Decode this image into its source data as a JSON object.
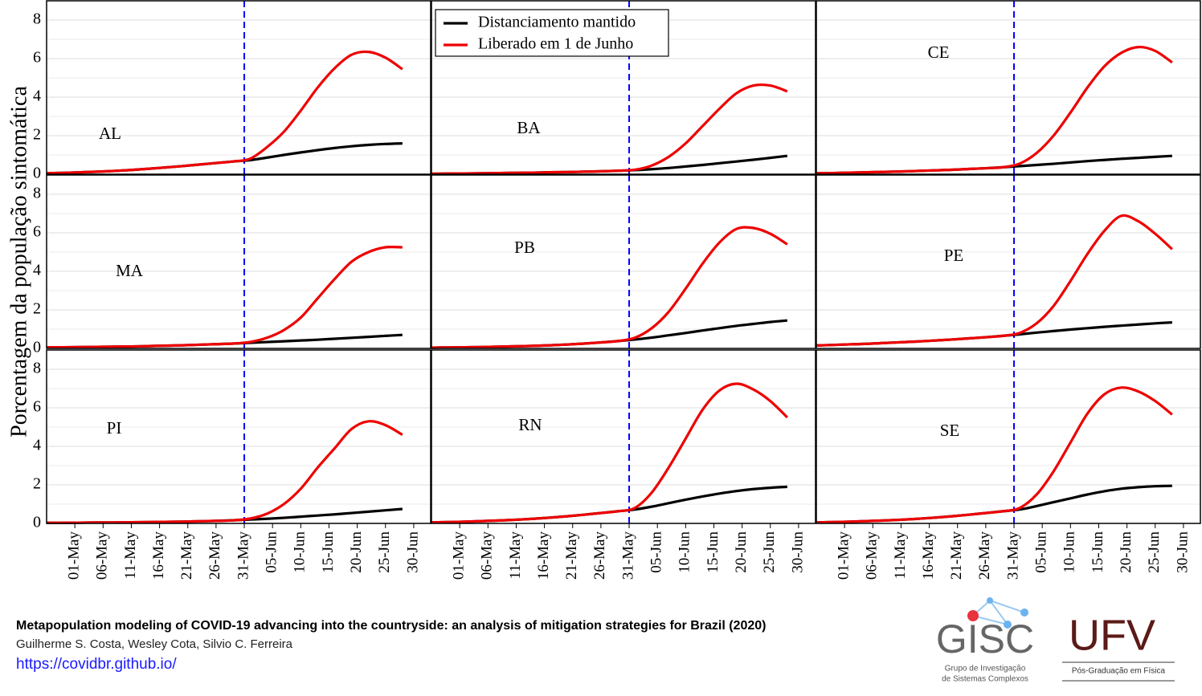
{
  "ylabel": "Porcentagem da população sintomática",
  "chart_data": [
    {
      "type": "line",
      "label": "AL",
      "xlim": [
        "26-Apr",
        "03-Jul"
      ],
      "ylim": [
        0,
        9
      ],
      "yticks": [
        0,
        2,
        4,
        6,
        8
      ],
      "minor_yticks": [
        1,
        3,
        5,
        7
      ],
      "grid": true,
      "vline": "31-May",
      "vline_color": "#0000ff",
      "x": [
        "26-Apr",
        "29-Apr",
        "02-May",
        "05-May",
        "08-May",
        "11-May",
        "14-May",
        "17-May",
        "20-May",
        "23-May",
        "26-May",
        "29-May",
        "01-Jun",
        "04-Jun",
        "07-Jun",
        "10-Jun",
        "13-Jun",
        "16-Jun",
        "19-Jun",
        "22-Jun",
        "25-Jun",
        "28-Jun"
      ],
      "series": [
        {
          "color": "#000000",
          "values": [
            0.05,
            0.07,
            0.1,
            0.13,
            0.17,
            0.22,
            0.28,
            0.35,
            0.42,
            0.5,
            0.58,
            0.66,
            0.73,
            0.86,
            1.0,
            1.13,
            1.25,
            1.36,
            1.45,
            1.52,
            1.57,
            1.6
          ]
        },
        {
          "color": "#ee0000",
          "values": [
            0.05,
            0.07,
            0.1,
            0.13,
            0.17,
            0.22,
            0.28,
            0.35,
            0.42,
            0.5,
            0.58,
            0.66,
            0.8,
            1.4,
            2.2,
            3.3,
            4.5,
            5.5,
            6.2,
            6.35,
            6.05,
            5.45
          ]
        }
      ]
    },
    {
      "type": "line",
      "label": "BA",
      "xlim": [
        "26-Apr",
        "03-Jul"
      ],
      "ylim": [
        0,
        9
      ],
      "yticks": [
        0,
        2,
        4,
        6,
        8
      ],
      "minor_yticks": [
        1,
        3,
        5,
        7
      ],
      "grid": true,
      "vline": "31-May",
      "vline_color": "#0000ff",
      "legend": "top-left",
      "x": [
        "26-Apr",
        "29-Apr",
        "02-May",
        "05-May",
        "08-May",
        "11-May",
        "14-May",
        "17-May",
        "20-May",
        "23-May",
        "26-May",
        "29-May",
        "01-Jun",
        "04-Jun",
        "07-Jun",
        "10-Jun",
        "13-Jun",
        "16-Jun",
        "19-Jun",
        "22-Jun",
        "25-Jun",
        "28-Jun"
      ],
      "series": [
        {
          "name": "Distanciamento mantido",
          "color": "#000000",
          "values": [
            0.02,
            0.03,
            0.04,
            0.05,
            0.06,
            0.07,
            0.08,
            0.1,
            0.11,
            0.13,
            0.15,
            0.18,
            0.21,
            0.26,
            0.32,
            0.4,
            0.48,
            0.57,
            0.66,
            0.75,
            0.85,
            0.95
          ]
        },
        {
          "name": "Liberado em 1 de Junho",
          "color": "#ee0000",
          "values": [
            0.02,
            0.03,
            0.04,
            0.05,
            0.06,
            0.07,
            0.08,
            0.1,
            0.11,
            0.13,
            0.15,
            0.18,
            0.23,
            0.45,
            0.9,
            1.6,
            2.5,
            3.4,
            4.2,
            4.6,
            4.6,
            4.3
          ]
        }
      ]
    },
    {
      "type": "line",
      "label": "CE",
      "xlim": [
        "26-Apr",
        "03-Jul"
      ],
      "ylim": [
        0,
        9
      ],
      "yticks": [
        0,
        2,
        4,
        6,
        8
      ],
      "minor_yticks": [
        1,
        3,
        5,
        7
      ],
      "grid": true,
      "vline": "31-May",
      "vline_color": "#0000ff",
      "x": [
        "26-Apr",
        "29-Apr",
        "02-May",
        "05-May",
        "08-May",
        "11-May",
        "14-May",
        "17-May",
        "20-May",
        "23-May",
        "26-May",
        "29-May",
        "01-Jun",
        "04-Jun",
        "07-Jun",
        "10-Jun",
        "13-Jun",
        "16-Jun",
        "19-Jun",
        "22-Jun",
        "25-Jun",
        "28-Jun"
      ],
      "series": [
        {
          "color": "#000000",
          "values": [
            0.05,
            0.06,
            0.08,
            0.1,
            0.12,
            0.14,
            0.17,
            0.2,
            0.23,
            0.27,
            0.31,
            0.36,
            0.42,
            0.48,
            0.54,
            0.61,
            0.68,
            0.74,
            0.8,
            0.85,
            0.9,
            0.95
          ]
        },
        {
          "color": "#ee0000",
          "values": [
            0.05,
            0.06,
            0.08,
            0.1,
            0.12,
            0.14,
            0.17,
            0.2,
            0.23,
            0.27,
            0.31,
            0.36,
            0.55,
            1.1,
            2.0,
            3.2,
            4.5,
            5.6,
            6.3,
            6.6,
            6.4,
            5.8
          ]
        }
      ]
    },
    {
      "type": "line",
      "label": "MA",
      "xlim": [
        "26-Apr",
        "03-Jul"
      ],
      "ylim": [
        0,
        9
      ],
      "yticks": [
        0,
        2,
        4,
        6,
        8
      ],
      "minor_yticks": [
        1,
        3,
        5,
        7
      ],
      "grid": true,
      "vline": "31-May",
      "vline_color": "#0000ff",
      "x": [
        "26-Apr",
        "29-Apr",
        "02-May",
        "05-May",
        "08-May",
        "11-May",
        "14-May",
        "17-May",
        "20-May",
        "23-May",
        "26-May",
        "29-May",
        "01-Jun",
        "04-Jun",
        "07-Jun",
        "10-Jun",
        "13-Jun",
        "16-Jun",
        "19-Jun",
        "22-Jun",
        "25-Jun",
        "28-Jun"
      ],
      "series": [
        {
          "color": "#000000",
          "values": [
            0.05,
            0.06,
            0.07,
            0.08,
            0.09,
            0.1,
            0.12,
            0.14,
            0.16,
            0.19,
            0.22,
            0.25,
            0.29,
            0.33,
            0.37,
            0.41,
            0.45,
            0.5,
            0.55,
            0.6,
            0.65,
            0.7
          ]
        },
        {
          "color": "#ee0000",
          "values": [
            0.05,
            0.06,
            0.07,
            0.08,
            0.09,
            0.1,
            0.12,
            0.14,
            0.16,
            0.19,
            0.22,
            0.25,
            0.33,
            0.55,
            0.95,
            1.6,
            2.6,
            3.6,
            4.5,
            5.0,
            5.25,
            5.25
          ]
        }
      ]
    },
    {
      "type": "line",
      "label": "PB",
      "xlim": [
        "26-Apr",
        "03-Jul"
      ],
      "ylim": [
        0,
        9
      ],
      "yticks": [
        0,
        2,
        4,
        6,
        8
      ],
      "minor_yticks": [
        1,
        3,
        5,
        7
      ],
      "grid": true,
      "vline": "31-May",
      "vline_color": "#0000ff",
      "x": [
        "26-Apr",
        "29-Apr",
        "02-May",
        "05-May",
        "08-May",
        "11-May",
        "14-May",
        "17-May",
        "20-May",
        "23-May",
        "26-May",
        "29-May",
        "01-Jun",
        "04-Jun",
        "07-Jun",
        "10-Jun",
        "13-Jun",
        "16-Jun",
        "19-Jun",
        "22-Jun",
        "25-Jun",
        "28-Jun"
      ],
      "series": [
        {
          "color": "#000000",
          "values": [
            0.04,
            0.05,
            0.06,
            0.07,
            0.09,
            0.11,
            0.13,
            0.16,
            0.2,
            0.25,
            0.31,
            0.38,
            0.46,
            0.56,
            0.68,
            0.8,
            0.93,
            1.05,
            1.17,
            1.27,
            1.37,
            1.45
          ]
        },
        {
          "color": "#ee0000",
          "values": [
            0.04,
            0.05,
            0.06,
            0.07,
            0.09,
            0.11,
            0.13,
            0.16,
            0.2,
            0.25,
            0.31,
            0.38,
            0.55,
            1.05,
            1.9,
            3.1,
            4.4,
            5.5,
            6.2,
            6.25,
            5.95,
            5.4
          ]
        }
      ]
    },
    {
      "type": "line",
      "label": "PE",
      "xlim": [
        "26-Apr",
        "03-Jul"
      ],
      "ylim": [
        0,
        9
      ],
      "yticks": [
        0,
        2,
        4,
        6,
        8
      ],
      "minor_yticks": [
        1,
        3,
        5,
        7
      ],
      "grid": true,
      "vline": "31-May",
      "vline_color": "#0000ff",
      "x": [
        "26-Apr",
        "29-Apr",
        "02-May",
        "05-May",
        "08-May",
        "11-May",
        "14-May",
        "17-May",
        "20-May",
        "23-May",
        "26-May",
        "29-May",
        "01-Jun",
        "04-Jun",
        "07-Jun",
        "10-Jun",
        "13-Jun",
        "16-Jun",
        "19-Jun",
        "22-Jun",
        "25-Jun",
        "28-Jun"
      ],
      "series": [
        {
          "color": "#000000",
          "values": [
            0.15,
            0.18,
            0.21,
            0.24,
            0.28,
            0.32,
            0.36,
            0.41,
            0.46,
            0.52,
            0.58,
            0.65,
            0.73,
            0.82,
            0.9,
            0.98,
            1.05,
            1.12,
            1.18,
            1.24,
            1.3,
            1.35
          ]
        },
        {
          "color": "#ee0000",
          "values": [
            0.15,
            0.18,
            0.21,
            0.24,
            0.28,
            0.32,
            0.36,
            0.41,
            0.46,
            0.52,
            0.58,
            0.65,
            0.8,
            1.3,
            2.2,
            3.5,
            4.9,
            6.1,
            6.88,
            6.6,
            5.95,
            5.15
          ]
        }
      ]
    },
    {
      "type": "line",
      "label": "PI",
      "xlim": [
        "26-Apr",
        "03-Jul"
      ],
      "ylim": [
        0,
        9
      ],
      "yticks": [
        0,
        2,
        4,
        6,
        8
      ],
      "minor_yticks": [
        1,
        3,
        5,
        7
      ],
      "grid": true,
      "vline": "31-May",
      "vline_color": "#0000ff",
      "xticks": [
        "01-May",
        "06-May",
        "11-May",
        "16-May",
        "21-May",
        "26-May",
        "31-May",
        "05-Jun",
        "10-Jun",
        "15-Jun",
        "20-Jun",
        "25-Jun",
        "30-Jun"
      ],
      "x": [
        "26-Apr",
        "29-Apr",
        "02-May",
        "05-May",
        "08-May",
        "11-May",
        "14-May",
        "17-May",
        "20-May",
        "23-May",
        "26-May",
        "29-May",
        "01-Jun",
        "04-Jun",
        "07-Jun",
        "10-Jun",
        "13-Jun",
        "16-Jun",
        "19-Jun",
        "22-Jun",
        "25-Jun",
        "28-Jun"
      ],
      "series": [
        {
          "color": "#000000",
          "values": [
            0.03,
            0.03,
            0.04,
            0.05,
            0.05,
            0.06,
            0.07,
            0.08,
            0.09,
            0.11,
            0.13,
            0.16,
            0.2,
            0.24,
            0.29,
            0.35,
            0.41,
            0.47,
            0.54,
            0.61,
            0.68,
            0.75
          ]
        },
        {
          "color": "#ee0000",
          "values": [
            0.03,
            0.03,
            0.04,
            0.05,
            0.05,
            0.06,
            0.07,
            0.08,
            0.09,
            0.11,
            0.13,
            0.16,
            0.25,
            0.5,
            1.0,
            1.8,
            2.9,
            3.9,
            4.9,
            5.3,
            5.1,
            4.6
          ]
        }
      ]
    },
    {
      "type": "line",
      "label": "RN",
      "xlim": [
        "26-Apr",
        "03-Jul"
      ],
      "ylim": [
        0,
        9
      ],
      "yticks": [
        0,
        2,
        4,
        6,
        8
      ],
      "minor_yticks": [
        1,
        3,
        5,
        7
      ],
      "grid": true,
      "vline": "31-May",
      "vline_color": "#0000ff",
      "xticks": [
        "01-May",
        "06-May",
        "11-May",
        "16-May",
        "21-May",
        "26-May",
        "31-May",
        "05-Jun",
        "10-Jun",
        "15-Jun",
        "20-Jun",
        "25-Jun",
        "30-Jun"
      ],
      "x": [
        "26-Apr",
        "29-Apr",
        "02-May",
        "05-May",
        "08-May",
        "11-May",
        "14-May",
        "17-May",
        "20-May",
        "23-May",
        "26-May",
        "29-May",
        "01-Jun",
        "04-Jun",
        "07-Jun",
        "10-Jun",
        "13-Jun",
        "16-Jun",
        "19-Jun",
        "22-Jun",
        "25-Jun",
        "28-Jun"
      ],
      "series": [
        {
          "color": "#000000",
          "values": [
            0.05,
            0.07,
            0.09,
            0.12,
            0.15,
            0.19,
            0.24,
            0.3,
            0.37,
            0.45,
            0.54,
            0.63,
            0.72,
            0.87,
            1.05,
            1.23,
            1.4,
            1.55,
            1.68,
            1.78,
            1.85,
            1.9
          ]
        },
        {
          "color": "#ee0000",
          "values": [
            0.05,
            0.07,
            0.09,
            0.12,
            0.15,
            0.19,
            0.24,
            0.3,
            0.37,
            0.45,
            0.54,
            0.63,
            0.8,
            1.6,
            2.9,
            4.4,
            5.9,
            6.9,
            7.25,
            6.95,
            6.35,
            5.5
          ]
        }
      ]
    },
    {
      "type": "line",
      "label": "SE",
      "xlim": [
        "26-Apr",
        "03-Jul"
      ],
      "ylim": [
        0,
        9
      ],
      "yticks": [
        0,
        2,
        4,
        6,
        8
      ],
      "minor_yticks": [
        1,
        3,
        5,
        7
      ],
      "grid": true,
      "vline": "31-May",
      "vline_color": "#0000ff",
      "xticks": [
        "01-May",
        "06-May",
        "11-May",
        "16-May",
        "21-May",
        "26-May",
        "31-May",
        "05-Jun",
        "10-Jun",
        "15-Jun",
        "20-Jun",
        "25-Jun",
        "30-Jun"
      ],
      "x": [
        "26-Apr",
        "29-Apr",
        "02-May",
        "05-May",
        "08-May",
        "11-May",
        "14-May",
        "17-May",
        "20-May",
        "23-May",
        "26-May",
        "29-May",
        "01-Jun",
        "04-Jun",
        "07-Jun",
        "10-Jun",
        "13-Jun",
        "16-Jun",
        "19-Jun",
        "22-Jun",
        "25-Jun",
        "28-Jun"
      ],
      "series": [
        {
          "color": "#000000",
          "values": [
            0.05,
            0.07,
            0.09,
            0.12,
            0.15,
            0.19,
            0.24,
            0.3,
            0.37,
            0.45,
            0.54,
            0.63,
            0.72,
            0.9,
            1.1,
            1.3,
            1.5,
            1.67,
            1.8,
            1.88,
            1.93,
            1.95
          ]
        },
        {
          "color": "#ee0000",
          "values": [
            0.05,
            0.07,
            0.09,
            0.12,
            0.15,
            0.19,
            0.24,
            0.3,
            0.37,
            0.45,
            0.54,
            0.63,
            0.8,
            1.5,
            2.7,
            4.2,
            5.7,
            6.7,
            7.05,
            6.85,
            6.35,
            5.65
          ]
        }
      ]
    }
  ],
  "footer": {
    "title": "Metapopulation modeling of COVID-19 advancing into the countryside: an analysis of mitigation strategies for Brazil (2020)",
    "authors": "Guilherme S. Costa, Wesley Cota, Silvio C. Ferreira",
    "url": "https://covidbr.github.io/"
  },
  "logos": {
    "gisc": "GISC",
    "gisc_subtitle": [
      "Grupo de Investigação",
      "de Sistemas Complexos"
    ],
    "ufv": "UFV",
    "ufv_subtitle": "Pós-Graduação em Física"
  }
}
